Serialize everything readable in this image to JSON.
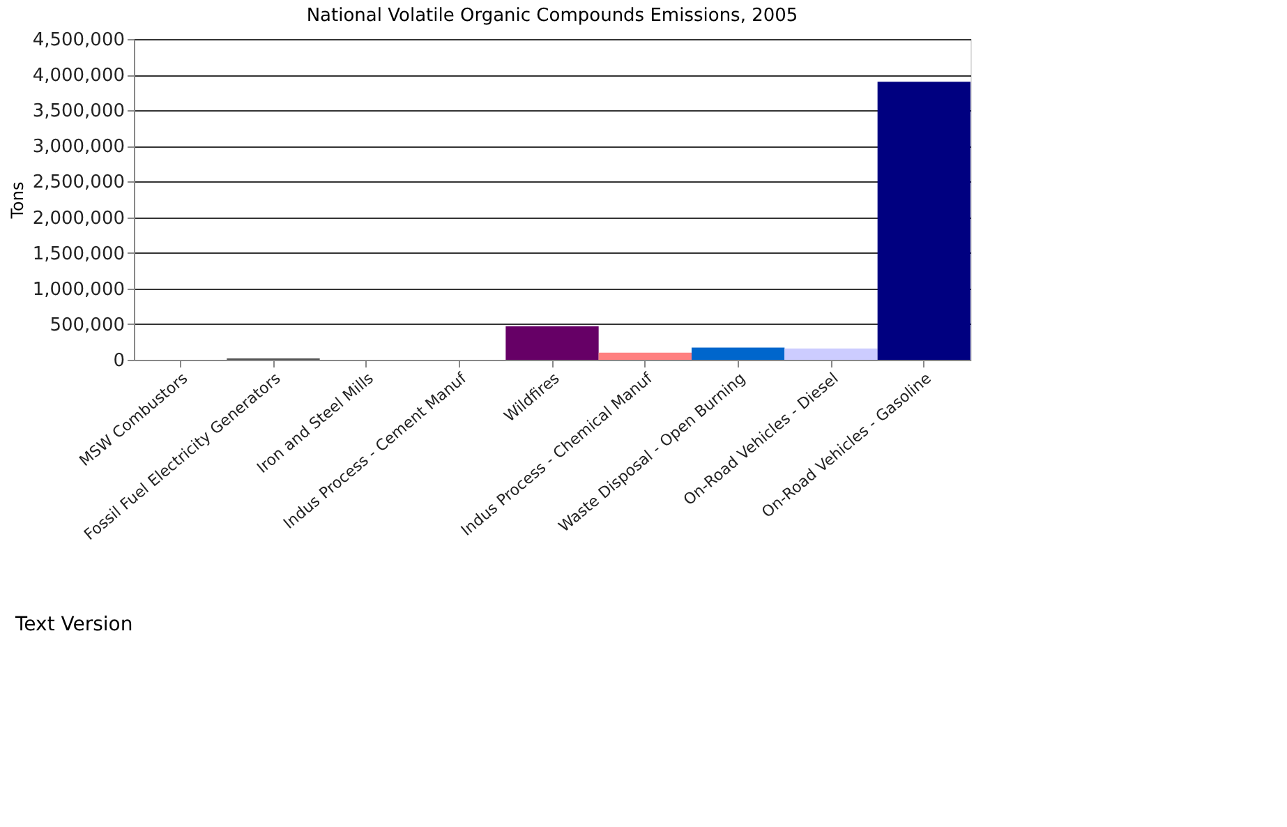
{
  "chart_data": {
    "type": "bar",
    "title": "National Volatile Organic Compounds Emissions, 2005",
    "ylabel": "Tons",
    "categories": [
      "MSW Combustors",
      "Fossil Fuel Electricity Generators",
      "Iron and Steel Mills",
      "Indus Process - Cement Manuf",
      "Wildfires",
      "Indus Process - Chemical Manuf",
      "Waste Disposal - Open Burning",
      "On-Road Vehicles - Diesel",
      "On-Road Vehicles - Gasoline"
    ],
    "values": [
      0,
      20000,
      0,
      0,
      470000,
      100000,
      170000,
      160000,
      3900000
    ],
    "colors": [
      "#99ccff",
      "#555555",
      "#99ccff",
      "#99ccff",
      "#660066",
      "#ff8080",
      "#0066cc",
      "#ccccff",
      "#000080"
    ],
    "ylim": [
      0,
      4500000
    ],
    "yticks": [
      0,
      {
        "value": 500000,
        "label": "500,000"
      },
      {
        "value": 1000000,
        "label": "1,000,000"
      },
      {
        "value": 1500000,
        "label": "1,500,000"
      },
      {
        "value": 2000000,
        "label": "2,000,000"
      },
      {
        "value": 2500000,
        "label": "2,500,000"
      },
      {
        "value": 3000000,
        "label": "3,000,000"
      },
      {
        "value": 3500000,
        "label": "3,500,000"
      },
      {
        "value": 4000000,
        "label": "4,000,000"
      },
      {
        "value": 4500000,
        "label": "4,500,000"
      }
    ],
    "grid": "y",
    "legend": false,
    "annotations": [
      "Text Version"
    ]
  }
}
